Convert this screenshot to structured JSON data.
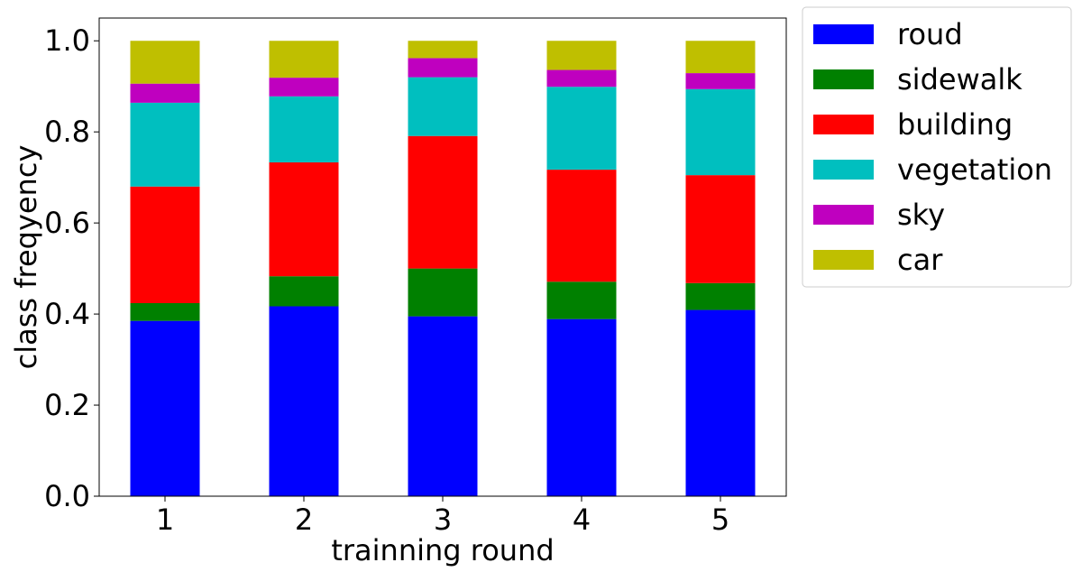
{
  "chart_data": {
    "type": "bar",
    "stacked": true,
    "title": "",
    "xlabel": "trainning round",
    "ylabel": "class freqyency",
    "categories": [
      "1",
      "2",
      "3",
      "4",
      "5"
    ],
    "ylim": [
      0,
      1.05
    ],
    "yticks": [
      "0.0",
      "0.2",
      "0.4",
      "0.6",
      "0.8",
      "1.0"
    ],
    "grid": false,
    "legend_position": "outside-top-right",
    "series": [
      {
        "name": "roud",
        "color": "#0000ff",
        "values": [
          0.385,
          0.417,
          0.395,
          0.389,
          0.409
        ]
      },
      {
        "name": "sidewalk",
        "color": "#008000",
        "values": [
          0.039,
          0.066,
          0.105,
          0.082,
          0.059
        ]
      },
      {
        "name": "building",
        "color": "#ff0000",
        "values": [
          0.256,
          0.25,
          0.291,
          0.246,
          0.237
        ]
      },
      {
        "name": "vegetation",
        "color": "#00bfbf",
        "values": [
          0.184,
          0.145,
          0.129,
          0.182,
          0.189
        ]
      },
      {
        "name": "sky",
        "color": "#bf00bf",
        "values": [
          0.042,
          0.041,
          0.042,
          0.037,
          0.035
        ]
      },
      {
        "name": "car",
        "color": "#bfbf00",
        "values": [
          0.094,
          0.081,
          0.038,
          0.064,
          0.071
        ]
      }
    ]
  }
}
